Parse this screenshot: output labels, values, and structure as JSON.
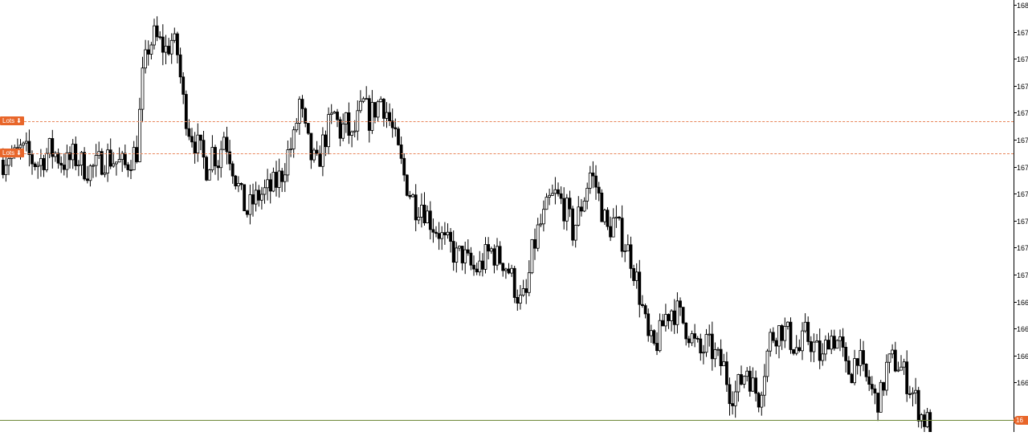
{
  "order_lines": [
    {
      "label": "Lots",
      "arrow": "⬇",
      "price": 1.6722
    },
    {
      "label": "Lots",
      "arrow": "⬇",
      "price": 1.6712
    }
  ],
  "current_price_badge": "16",
  "price_axis": {
    "tick_labels": [
      "168",
      "167",
      "167",
      "167",
      "167",
      "167",
      "167",
      "167",
      "167",
      "167",
      "167",
      "166",
      "166",
      "166",
      "166"
    ]
  },
  "colors": {
    "candle_body": "#000000",
    "wick": "#000000",
    "order_line": "#e8855a",
    "order_tag": "#e8662a",
    "current_price_line": "#6f8a3a"
  },
  "chart_data": {
    "type": "candlestick",
    "title": "",
    "xlabel": "",
    "ylabel": "",
    "ylim": [
      1.663,
      1.6755
    ],
    "series": [
      {
        "closes": [
          1.671,
          1.6712,
          1.6711,
          1.6713,
          1.6712,
          1.671,
          1.6709,
          1.6711,
          1.6713,
          1.6712,
          1.671,
          1.6709,
          1.6711,
          1.671,
          1.6708,
          1.6707,
          1.6708,
          1.671,
          1.6711,
          1.671,
          1.6709,
          1.6708,
          1.6711,
          1.6713,
          1.6735,
          1.6745,
          1.6748,
          1.6746,
          1.6744,
          1.6747,
          1.6743,
          1.6728,
          1.672,
          1.6716,
          1.6712,
          1.6708,
          1.6713,
          1.671,
          1.6718,
          1.6712,
          1.6705,
          1.6698,
          1.6694,
          1.6697,
          1.6699,
          1.67,
          1.6701,
          1.6703,
          1.6706,
          1.6712,
          1.6716,
          1.6728,
          1.6718,
          1.6711,
          1.6708,
          1.6715,
          1.672,
          1.6724,
          1.6719,
          1.6721,
          1.6716,
          1.6722,
          1.6727,
          1.6723,
          1.6726,
          1.6729,
          1.6725,
          1.6719,
          1.6712,
          1.6705,
          1.67,
          1.6696,
          1.6697,
          1.6693,
          1.669,
          1.6688,
          1.6684,
          1.6683,
          1.668,
          1.6681,
          1.6678,
          1.6676,
          1.6677,
          1.668,
          1.6682,
          1.668,
          1.6679,
          1.6676,
          1.6671,
          1.6666,
          1.6668,
          1.6681,
          1.6688,
          1.6692,
          1.6697,
          1.6699,
          1.6697,
          1.6694,
          1.6688,
          1.6693,
          1.6699,
          1.6706,
          1.6702,
          1.6695,
          1.6688,
          1.6691,
          1.6688,
          1.6684,
          1.668,
          1.6673,
          1.6664,
          1.6654,
          1.6652,
          1.6656,
          1.6662,
          1.6664,
          1.6663,
          1.666,
          1.6657,
          1.6653,
          1.665,
          1.6653,
          1.6651,
          1.6648,
          1.6646,
          1.6639,
          1.6638,
          1.6642,
          1.6646,
          1.664,
          1.6637,
          1.6646,
          1.6655,
          1.6657,
          1.6658,
          1.6656,
          1.6653,
          1.6651,
          1.6656,
          1.6654,
          1.6651,
          1.6648,
          1.6656,
          1.6655,
          1.6653,
          1.6645,
          1.6645,
          1.6651,
          1.6643,
          1.6641,
          1.6636,
          1.6637,
          1.6646,
          1.6648,
          1.6647,
          1.6644,
          1.664,
          1.6636,
          1.6631,
          1.6629
        ]
      }
    ]
  }
}
